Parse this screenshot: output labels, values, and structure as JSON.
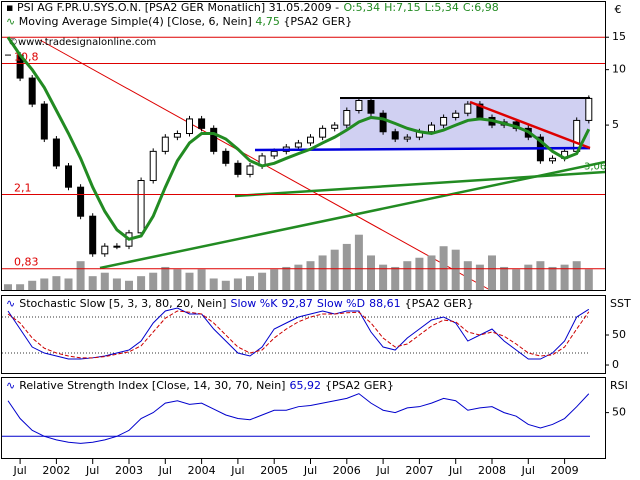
{
  "header": {
    "watermark": "©www.tradesignalonline.com",
    "currency": "€"
  },
  "chart_data": [
    {
      "type": "candlestick",
      "title": "PSI AG F.PR.U.SYS.O.N. [PSA2 GER  Monatlich] 31.05.2009 -",
      "ohlc": [
        "O:5,34",
        "H:7,15",
        "L:5,34",
        "C:6,98"
      ],
      "categories": [
        null,
        "Jul",
        null,
        null,
        "2002",
        null,
        null,
        "Jul",
        null,
        null,
        "2003",
        null,
        null,
        "Jul",
        null,
        null,
        "2004",
        null,
        null,
        "Jul",
        null,
        null,
        "2005",
        null,
        null,
        "Jul",
        null,
        null,
        "2006",
        null,
        null,
        "Jul",
        null,
        null,
        "2007",
        null,
        null,
        "Jul",
        null,
        null,
        "2008",
        null,
        null,
        "Jul",
        null,
        null,
        "2009",
        null,
        null
      ],
      "close": [
        12,
        9,
        6.5,
        4.2,
        3.0,
        2.3,
        1.6,
        1.0,
        1.1,
        1.1,
        1.3,
        2.5,
        3.6,
        4.3,
        4.5,
        5.4,
        4.8,
        3.6,
        3.1,
        2.7,
        3.0,
        3.4,
        3.6,
        3.8,
        4.0,
        4.3,
        4.8,
        5.0,
        6.0,
        6.8,
        5.8,
        4.6,
        4.2,
        4.3,
        4.6,
        5.0,
        5.5,
        5.8,
        6.5,
        5.5,
        5.0,
        5.2,
        4.8,
        4.3,
        3.2,
        3.3,
        3.6,
        5.3,
        6.98
      ],
      "candle_up_color": "#ffffff",
      "candle_down_color": "#000000",
      "series": [
        {
          "name": "Moving Average Simple(4) [Close, 6, Nein]",
          "color": "#228b22",
          "values": [
            15,
            12,
            10,
            8,
            6,
            4.5,
            3.3,
            2.3,
            1.7,
            1.35,
            1.2,
            1.25,
            1.6,
            2.3,
            3.2,
            4.0,
            4.5,
            4.5,
            4.2,
            3.7,
            3.2,
            3.0,
            3.1,
            3.3,
            3.5,
            3.7,
            4.0,
            4.3,
            4.7,
            5.2,
            5.5,
            5.4,
            5.1,
            4.8,
            4.6,
            4.5,
            4.7,
            5.0,
            5.3,
            5.4,
            5.3,
            5.1,
            4.9,
            4.6,
            4.1,
            3.6,
            3.3,
            3.5,
            4.75
          ],
          "value_label": "4,75",
          "suffix": "{PSA2 GER}"
        }
      ],
      "volume": {
        "color": "#999999",
        "values": [
          5,
          5,
          8,
          10,
          12,
          10,
          25,
          12,
          15,
          10,
          8,
          12,
          15,
          20,
          18,
          15,
          18,
          10,
          8,
          10,
          12,
          15,
          18,
          20,
          22,
          25,
          30,
          35,
          40,
          48,
          30,
          22,
          20,
          25,
          28,
          30,
          38,
          35,
          25,
          22,
          30,
          20,
          18,
          22,
          25,
          20,
          22,
          25,
          18
        ]
      },
      "y2lim": [
        0,
        250
      ],
      "log": true,
      "ylim": [
        0.636,
        23.3
      ],
      "yticks": [
        5,
        10,
        15
      ],
      "levels": [
        15,
        {
          "value": 10.8,
          "label": "10,8"
        },
        {
          "value": 2.1,
          "label": "2,1"
        },
        {
          "value": 0.83,
          "label": "0,83"
        }
      ],
      "level_color": "#dd0000",
      "annotation": {
        "value": 3.06,
        "label": "3,06",
        "color": "#228b22"
      }
    },
    {
      "type": "line",
      "title": "Stochastic Slow [5, 3, 3, 80, 20, Nein]",
      "suffix": "{PSA2 GER}",
      "axis_label": "SST",
      "series": [
        {
          "name": "Slow %K",
          "color": "#0000cc",
          "value_label": "92,87",
          "values": [
            90,
            60,
            30,
            20,
            15,
            10,
            10,
            12,
            15,
            20,
            25,
            40,
            70,
            90,
            95,
            85,
            85,
            60,
            40,
            20,
            15,
            30,
            60,
            70,
            80,
            85,
            90,
            85,
            90,
            90,
            55,
            30,
            25,
            45,
            60,
            75,
            80,
            70,
            40,
            50,
            60,
            40,
            25,
            10,
            10,
            20,
            40,
            80,
            92.87
          ]
        },
        {
          "name": "Slow %D",
          "color": "#cc0000",
          "dashed": true,
          "value_label": "88,61",
          "values": [
            85,
            70,
            45,
            28,
            20,
            15,
            12,
            12,
            14,
            18,
            22,
            32,
            55,
            78,
            90,
            88,
            85,
            70,
            50,
            30,
            20,
            25,
            45,
            60,
            72,
            80,
            85,
            85,
            87,
            88,
            70,
            45,
            30,
            35,
            50,
            65,
            75,
            72,
            55,
            50,
            55,
            48,
            35,
            20,
            15,
            17,
            30,
            60,
            88.61
          ]
        }
      ],
      "ylim": [
        -13.3,
        115
      ],
      "yticks": [
        0,
        50
      ],
      "levels": [
        20,
        80
      ]
    },
    {
      "type": "line",
      "title": "Relative Strength Index [Close, 14, 30, 70, Nein]",
      "suffix": "{PSA2 GER}",
      "axis_label": "RSI",
      "series": [
        {
          "color": "#0000cc",
          "value_label": "65,92",
          "values": [
            60,
            45,
            35,
            30,
            27,
            25,
            24,
            25,
            27,
            30,
            35,
            45,
            50,
            58,
            60,
            57,
            58,
            53,
            48,
            45,
            44,
            48,
            52,
            52,
            55,
            56,
            58,
            60,
            62,
            66,
            58,
            52,
            50,
            54,
            55,
            58,
            62,
            60,
            52,
            54,
            55,
            50,
            47,
            40,
            37,
            40,
            45,
            55,
            65.92
          ]
        }
      ],
      "ylim": [
        11.7,
        79.2
      ],
      "yticks": [
        50
      ],
      "levels": [
        30
      ]
    }
  ]
}
